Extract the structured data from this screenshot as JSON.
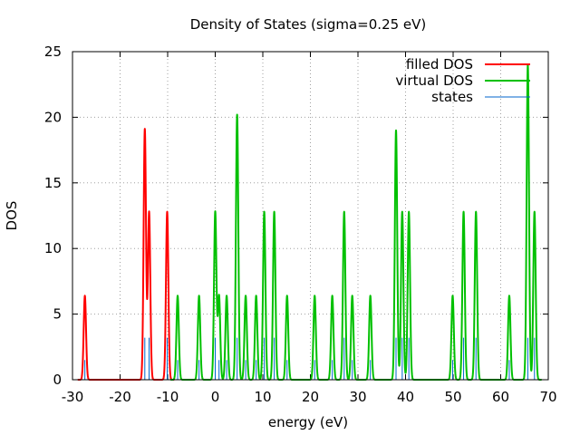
{
  "chart_data": {
    "type": "line",
    "title": "Density of States (sigma=0.25 eV)",
    "xlabel": "energy (eV)",
    "ylabel": "DOS",
    "xlim": [
      -30,
      70
    ],
    "ylim": [
      0,
      25
    ],
    "xticks": [
      -30,
      -20,
      -10,
      0,
      10,
      20,
      30,
      40,
      50,
      60,
      70
    ],
    "yticks": [
      0,
      5,
      10,
      15,
      20,
      25
    ],
    "grid": true,
    "legend_position": "top-right",
    "sigma": 0.25,
    "colors": {
      "filled": "#ff0000",
      "virtual": "#00c000",
      "states": "#0066cc"
    },
    "series": [
      {
        "name": "filled DOS",
        "peaks": [
          {
            "x": -27.4,
            "y": 6.4
          },
          {
            "x": -14.8,
            "y": 19.1
          },
          {
            "x": -13.9,
            "y": 12.8
          },
          {
            "x": -10.1,
            "y": 12.8
          }
        ]
      },
      {
        "name": "virtual DOS",
        "peaks": [
          {
            "x": -7.9,
            "y": 6.4
          },
          {
            "x": -3.4,
            "y": 6.4
          },
          {
            "x": 0.0,
            "y": 12.8
          },
          {
            "x": 0.8,
            "y": 6.4
          },
          {
            "x": 2.4,
            "y": 6.4
          },
          {
            "x": 4.6,
            "y": 20.2
          },
          {
            "x": 6.4,
            "y": 6.4
          },
          {
            "x": 8.6,
            "y": 6.4
          },
          {
            "x": 10.3,
            "y": 12.8
          },
          {
            "x": 12.4,
            "y": 12.8
          },
          {
            "x": 15.1,
            "y": 6.4
          },
          {
            "x": 20.9,
            "y": 6.4
          },
          {
            "x": 24.6,
            "y": 6.4
          },
          {
            "x": 27.1,
            "y": 12.8
          },
          {
            "x": 28.8,
            "y": 6.4
          },
          {
            "x": 32.6,
            "y": 6.4
          },
          {
            "x": 38.0,
            "y": 19.0
          },
          {
            "x": 39.3,
            "y": 12.8
          },
          {
            "x": 40.7,
            "y": 12.8
          },
          {
            "x": 49.9,
            "y": 6.4
          },
          {
            "x": 52.2,
            "y": 12.8
          },
          {
            "x": 54.8,
            "y": 12.8
          },
          {
            "x": 61.8,
            "y": 6.4
          },
          {
            "x": 65.7,
            "y": 24.0
          },
          {
            "x": 67.1,
            "y": 12.8
          }
        ]
      },
      {
        "name": "states",
        "x": [
          -27.4,
          -14.8,
          -13.9,
          -10.1,
          -7.9,
          -3.4,
          0.0,
          0.8,
          2.4,
          4.6,
          6.4,
          8.6,
          10.3,
          12.4,
          15.1,
          20.9,
          24.6,
          27.1,
          28.8,
          32.6,
          38.0,
          39.3,
          40.7,
          49.9,
          52.2,
          54.8,
          61.8,
          65.7,
          67.1
        ],
        "y": [
          1.5,
          3.2,
          3.2,
          3.2,
          1.5,
          1.5,
          3.2,
          1.5,
          1.5,
          3.2,
          1.5,
          1.5,
          3.2,
          3.2,
          1.5,
          1.5,
          1.5,
          3.2,
          1.5,
          1.5,
          3.2,
          3.2,
          3.2,
          1.5,
          3.2,
          3.2,
          1.5,
          3.2,
          3.2
        ]
      }
    ]
  }
}
